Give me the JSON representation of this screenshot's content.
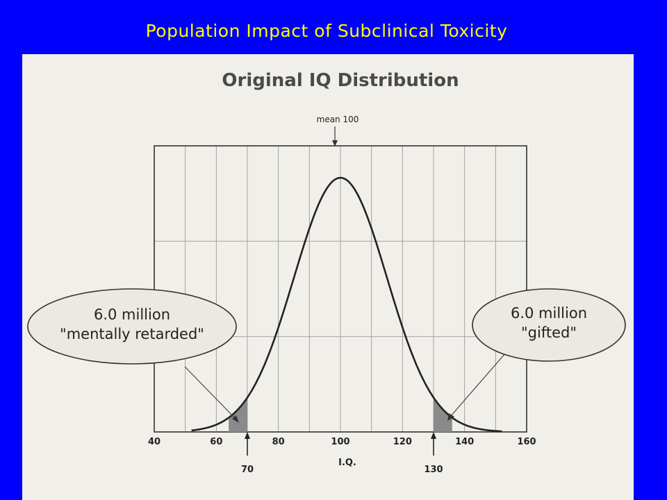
{
  "slide": {
    "title": "Population Impact of Subclinical Toxicity"
  },
  "chart_data": {
    "type": "area",
    "title": "Original IQ Distribution",
    "xlabel": "I.Q.",
    "ylabel": "",
    "xlim": [
      40,
      160
    ],
    "x_ticks": [
      "40",
      "60",
      "80",
      "100",
      "120",
      "140",
      "160"
    ],
    "grid": true,
    "distribution": {
      "kind": "normal",
      "mean": 100,
      "sd": 15
    },
    "mean_annotation": "mean 100",
    "cutoffs": [
      {
        "value": 70,
        "label": "70"
      },
      {
        "value": 130,
        "label": "130"
      }
    ],
    "callouts": [
      {
        "line1": "6.0 million",
        "line2": "\"mentally retarded\"",
        "side": "left"
      },
      {
        "line1": "6.0 million",
        "line2": "\"gifted\"",
        "side": "right"
      }
    ]
  }
}
